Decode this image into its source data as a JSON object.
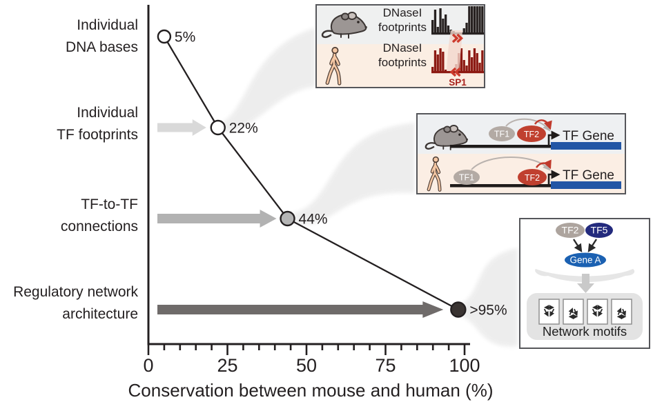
{
  "chart_data": {
    "type": "scatter",
    "title": "",
    "xlabel": "Conservation between mouse and human (%)",
    "xlim": [
      0,
      100
    ],
    "xticks": [
      0,
      25,
      50,
      75,
      100
    ],
    "minor_tick_step": 5,
    "grid": false,
    "legend": "none",
    "categories": [
      "Individual DNA bases",
      "Individual TF footprints",
      "TF-to-TF connections",
      "Regulatory network architecture"
    ],
    "points": [
      {
        "category": "Individual DNA bases",
        "value": 5,
        "label": "5%",
        "plot_value": 5,
        "marker_fill": "#ffffff"
      },
      {
        "category": "Individual TF footprints",
        "value": 22,
        "label": "22%",
        "plot_value": 22,
        "marker_fill": "#ffffff"
      },
      {
        "category": "TF-to-TF connections",
        "value": 44,
        "label": "44%",
        "plot_value": 44,
        "marker_fill": "#b5b5b5"
      },
      {
        "category": "Regulatory network architecture",
        "value": ">95",
        "label": ">95%",
        "plot_value": 98,
        "marker_fill": "#3a3432"
      }
    ],
    "line_color": "#231f20"
  },
  "category_labels": [
    [
      "Individual",
      "DNA bases"
    ],
    [
      "Individual",
      "TF footprints"
    ],
    [
      "TF-to-TF",
      "connections"
    ],
    [
      "Regulatory network",
      "architecture"
    ]
  ],
  "arrows": [
    {
      "points_to": "Individual TF footprints",
      "color": "#d9d9d9"
    },
    {
      "points_to": "TF-to-TF connections",
      "color": "#b2b2b2"
    },
    {
      "points_to": "Regulatory network architecture",
      "color": "#6f6b6a"
    }
  ],
  "insets": {
    "dnase": {
      "rows": [
        {
          "species": "mouse",
          "line1": "DNaseI",
          "line2": "footprints"
        },
        {
          "species": "human",
          "line1": "DNaseI",
          "line2": "footprints"
        }
      ],
      "sp1_label": "SP1",
      "mouse_hist": [
        18,
        33,
        8,
        35,
        20,
        26,
        10,
        4,
        2,
        0,
        0,
        0,
        6,
        14,
        38,
        38,
        38,
        38,
        38,
        38
      ],
      "human_hist": [
        6,
        30,
        24,
        33,
        28,
        2,
        0,
        0,
        0,
        10,
        26,
        33,
        16,
        8,
        30,
        20,
        33,
        26,
        12,
        30
      ],
      "colors": {
        "mouse_hist": "#272120",
        "human_hist": "#8c1a13",
        "chevrons": "#cd3a2c",
        "sp1": "#a6201c",
        "mouse_row_bg": "#eff0f0",
        "human_row_bg": "#fbeee3",
        "band": "#f2d7cd"
      }
    },
    "tf_gene": {
      "rows": [
        {
          "species": "mouse",
          "tf1": "TF1",
          "tf2": "TF2",
          "gene": "TF Gene"
        },
        {
          "species": "human",
          "tf1": "TF1",
          "tf2": "TF2",
          "gene": "TF Gene"
        }
      ],
      "colors": {
        "tf1_fill": "#b3aaa4",
        "tf2_fill": "#c0402f",
        "gene_bar": "#2256a5",
        "dna": "#1f1b1a",
        "mouse_row_bg": "#eef0f2",
        "human_row_bg": "#fbeee4"
      }
    },
    "network": {
      "tf2": "TF2",
      "tf5": "TF5",
      "gene_a": "Gene A",
      "caption": "Network motifs",
      "colors": {
        "tf2_fill": "#ada49e",
        "tf5_fill": "#232a7d",
        "gene_a_fill": "#1b61b2",
        "panel": "#e3e3e3",
        "down_arrow": "#c9c9c9"
      }
    }
  }
}
